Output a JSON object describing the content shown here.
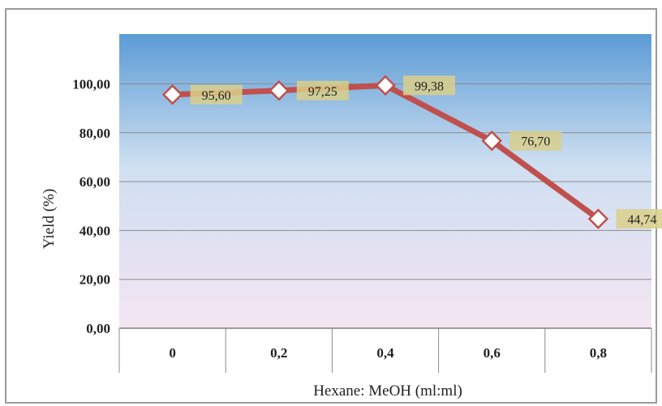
{
  "chart_data": {
    "type": "line",
    "title": "",
    "xlabel": "Hexane: MeOH (ml:ml)",
    "ylabel": "Yield (%)",
    "categories": [
      "0",
      "0,2",
      "0,4",
      "0,6",
      "0,8"
    ],
    "series": [
      {
        "values": [
          95.6,
          97.25,
          99.38,
          76.7,
          44.74
        ],
        "labels": [
          "95,60",
          "97,25",
          "99,38",
          "76,70",
          "44,74"
        ]
      }
    ],
    "ylim": [
      0,
      100
    ],
    "yticks": [
      "0,00",
      "20,00",
      "40,00",
      "60,00",
      "80,00",
      "100,00"
    ],
    "grid": true,
    "colors": {
      "line": "#c0504d",
      "marker_fill": "#ffffff",
      "marker_stroke": "#c0504d",
      "label_bg": "#d9cf8a",
      "plot_top": "#5b9bd5",
      "plot_mid": "#cfe0f1",
      "plot_bottom": "#f3e6f2"
    }
  }
}
